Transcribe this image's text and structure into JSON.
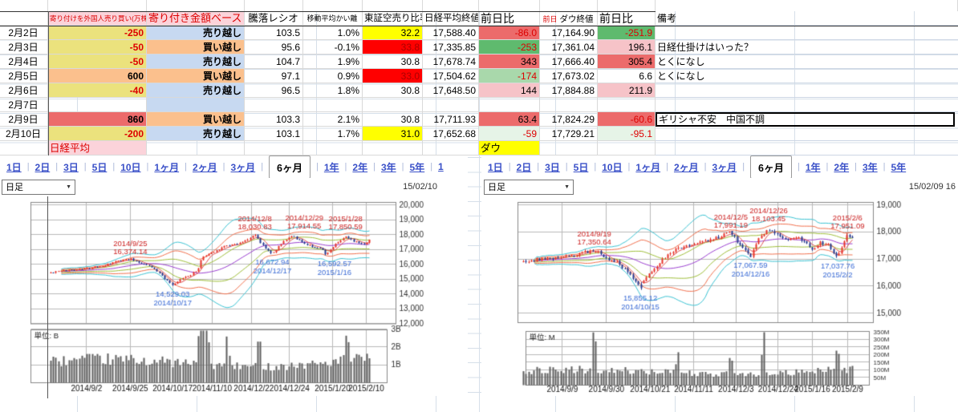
{
  "colors": {
    "accent_red": "#dd0000",
    "dark_red": "#aa0000",
    "tab_blue": "#3a50c8",
    "header_pink": "#fbd3da",
    "yellow": "#ebe27d",
    "orange": "#fbc08d",
    "blue": "#c7d9f1",
    "red_cell": "#ec6b6b",
    "lt_pink": "#f6c3c8",
    "green": "#5fba6e",
    "lt_green": "#a9d8ab",
    "vlt_green": "#e6f4e7",
    "hl_yellow": "#ffff00",
    "hl_red": "#ff0000",
    "candle_up": "#e8332a",
    "candle_down": "#24388f",
    "band_cyan": "#3cc4d4",
    "band_orange": "#f2714e",
    "band_green": "#9fbf3a",
    "ma_purple": "#9b3fd1",
    "ma_red": "#e05555",
    "vol_bar": "#5f5f5f",
    "ann_red": "#cc2222",
    "ann_blue": "#3a6bd6"
  },
  "table": {
    "headers": {
      "date": "",
      "foreign": "寄り付けを外国人売り買い(万株)",
      "basis": "寄り付き金額ベース",
      "ratio": "騰落レシオ",
      "ma_dev": "移動平均かい離",
      "short_ratio": "東証空売り比率",
      "nikkei_close": "日経平均終値",
      "nikkei_chg": "前日比",
      "dow_prev": "前日",
      "dow_close": "ダウ終値",
      "dow_chg": "前日比",
      "note": "備考"
    },
    "rows": [
      {
        "date": {
          "v": "2月2日"
        },
        "foreign": {
          "v": "-250",
          "bg": "yellow",
          "fg": "red"
        },
        "basis": {
          "v": "売り越し",
          "bg": "blue"
        },
        "ratio": {
          "v": "103.5"
        },
        "ma_dev": {
          "v": "1.0%"
        },
        "short_ratio": {
          "v": "32.2",
          "bg": "hl_yellow"
        },
        "nikkei_close": {
          "v": "17,588.40"
        },
        "nikkei_chg": {
          "v": "-86.0",
          "bg": "red_cell",
          "fg": "red"
        },
        "dow_close": {
          "v": "17,164.90"
        },
        "dow_chg": {
          "v": "-251.9",
          "bg": "green",
          "fg": "red"
        },
        "note": {
          "v": ""
        }
      },
      {
        "date": {
          "v": "2月3日"
        },
        "foreign": {
          "v": "-50",
          "bg": "yellow",
          "fg": "red"
        },
        "basis": {
          "v": "買い越し",
          "bg": "orange"
        },
        "ratio": {
          "v": "95.6"
        },
        "ma_dev": {
          "v": "-0.1%"
        },
        "short_ratio": {
          "v": "33.8",
          "bg": "hl_red",
          "fg": "dark_red"
        },
        "nikkei_close": {
          "v": "17,335.85"
        },
        "nikkei_chg": {
          "v": "-253",
          "bg": "green",
          "fg": "red"
        },
        "dow_close": {
          "v": "17,361.04"
        },
        "dow_chg": {
          "v": "196.1",
          "bg": "lt_pink"
        },
        "note": {
          "v": "日経仕掛けはいった？"
        }
      },
      {
        "date": {
          "v": "2月4日"
        },
        "foreign": {
          "v": "-50",
          "bg": "yellow",
          "fg": "red"
        },
        "basis": {
          "v": "売り越し",
          "bg": "blue"
        },
        "ratio": {
          "v": "104.7"
        },
        "ma_dev": {
          "v": "1.9%"
        },
        "short_ratio": {
          "v": "30.8"
        },
        "nikkei_close": {
          "v": "17,678.74"
        },
        "nikkei_chg": {
          "v": "343",
          "bg": "red_cell"
        },
        "dow_close": {
          "v": "17,666.40"
        },
        "dow_chg": {
          "v": "305.4",
          "bg": "red_cell"
        },
        "note": {
          "v": "とくになし"
        }
      },
      {
        "date": {
          "v": "2月5日"
        },
        "foreign": {
          "v": "600",
          "bg": "orange"
        },
        "basis": {
          "v": "買い越し",
          "bg": "orange"
        },
        "ratio": {
          "v": "97.1"
        },
        "ma_dev": {
          "v": "0.9%"
        },
        "short_ratio": {
          "v": "33.0",
          "bg": "hl_red",
          "fg": "dark_red"
        },
        "nikkei_close": {
          "v": "17,504.62"
        },
        "nikkei_chg": {
          "v": "-174",
          "bg": "lt_green",
          "fg": "red"
        },
        "dow_close": {
          "v": "17,673.02"
        },
        "dow_chg": {
          "v": "6.6"
        },
        "note": {
          "v": "とくになし"
        }
      },
      {
        "date": {
          "v": "2月6日"
        },
        "foreign": {
          "v": "-40",
          "bg": "yellow",
          "fg": "red"
        },
        "basis": {
          "v": "売り越し",
          "bg": "blue"
        },
        "ratio": {
          "v": "96.5"
        },
        "ma_dev": {
          "v": "1.8%"
        },
        "short_ratio": {
          "v": "30.8"
        },
        "nikkei_close": {
          "v": "17,648.50"
        },
        "nikkei_chg": {
          "v": "144",
          "bg": "lt_pink"
        },
        "dow_close": {
          "v": "17,884.88"
        },
        "dow_chg": {
          "v": "211.9",
          "bg": "lt_pink"
        },
        "note": {
          "v": ""
        }
      },
      {
        "date": {
          "v": "2月7日"
        },
        "foreign": {
          "v": ""
        },
        "basis": {
          "v": "",
          "bg": "blue"
        },
        "ratio": {
          "v": ""
        },
        "ma_dev": {
          "v": ""
        },
        "short_ratio": {
          "v": ""
        },
        "nikkei_close": {
          "v": ""
        },
        "nikkei_chg": {
          "v": ""
        },
        "dow_close": {
          "v": ""
        },
        "dow_chg": {
          "v": ""
        },
        "note": {
          "v": ""
        }
      },
      {
        "date": {
          "v": "2月9日"
        },
        "foreign": {
          "v": "860",
          "bg": "red_cell"
        },
        "basis": {
          "v": "買い越し",
          "bg": "orange"
        },
        "ratio": {
          "v": "103.3"
        },
        "ma_dev": {
          "v": "2.1%"
        },
        "short_ratio": {
          "v": "30.8"
        },
        "nikkei_close": {
          "v": "17,711.93"
        },
        "nikkei_chg": {
          "v": "63.4",
          "bg": "red_cell"
        },
        "dow_close": {
          "v": "17,824.29"
        },
        "dow_chg": {
          "v": "-60.6",
          "bg": "red_cell",
          "fg": "red"
        },
        "note": {
          "v": "ギリシャ不安　中国不調",
          "sel": true
        }
      },
      {
        "date": {
          "v": "2月10日"
        },
        "foreign": {
          "v": "-200",
          "bg": "yellow",
          "fg": "red"
        },
        "basis": {
          "v": "売り越し",
          "bg": "blue"
        },
        "ratio": {
          "v": "103.1"
        },
        "ma_dev": {
          "v": "1.7%"
        },
        "short_ratio": {
          "v": "31.0",
          "bg": "hl_yellow"
        },
        "nikkei_close": {
          "v": "17,652.68"
        },
        "nikkei_chg": {
          "v": "-59",
          "bg": "vlt_green",
          "fg": "red"
        },
        "dow_close": {
          "v": "17,729.21"
        },
        "dow_chg": {
          "v": "-95.1",
          "bg": "vlt_green",
          "fg": "red"
        },
        "note": {
          "v": ""
        }
      }
    ],
    "footer": {
      "nikkei_label": "日経平均",
      "dow_label": "ダウ"
    }
  },
  "left_panel": {
    "tabs": [
      "1日",
      "2日",
      "3日",
      "5日",
      "10日",
      "1ヶ月",
      "2ヶ月",
      "3ヶ月",
      "6ヶ月",
      "1年",
      "2年",
      "3年",
      "5年",
      "1"
    ],
    "selected_tab": "6ヶ月",
    "dropdown_value": "日足",
    "as_of": "15/02/10"
  },
  "right_panel": {
    "tabs": [
      "1日",
      "2日",
      "3日",
      "5日",
      "10日",
      "1ヶ月",
      "2ヶ月",
      "3ヶ月",
      "6ヶ月",
      "1年",
      "2年",
      "3年",
      "5年"
    ],
    "selected_tab": "6ヶ月",
    "dropdown_value": "日足",
    "as_of": "15/02/09 16"
  },
  "chart_data": [
    {
      "id": "nikkei",
      "type": "candlestick",
      "interval_label": "日足",
      "range_label": "6ヶ月",
      "as_of": "15/02/10",
      "ylim": [
        12000,
        20000
      ],
      "yticks": [
        {
          "v": 20000,
          "label": "20,000"
        },
        {
          "v": 19000,
          "label": "19,000"
        },
        {
          "v": 18000,
          "label": "18,000"
        },
        {
          "v": 17000,
          "label": "17,000"
        },
        {
          "v": 16000,
          "label": "16,000"
        },
        {
          "v": 15000,
          "label": "15,000"
        },
        {
          "v": 14000,
          "label": "14,000"
        },
        {
          "v": 13000,
          "label": "13,000"
        },
        {
          "v": 12000,
          "label": "12,000"
        }
      ],
      "x_labels": [
        {
          "t": 0.112,
          "label": "2014/9/2"
        },
        {
          "t": 0.249,
          "label": "2014/9/25"
        },
        {
          "t": 0.382,
          "label": "2014/10/17"
        },
        {
          "t": 0.506,
          "label": "2014/11/10"
        },
        {
          "t": 0.63,
          "label": "2014/12/2"
        },
        {
          "t": 0.749,
          "label": "2014/12/24"
        },
        {
          "t": 0.884,
          "label": "2015/1/20"
        },
        {
          "t": 0.99,
          "label": "2015/2/10"
        }
      ],
      "anchors": [
        [
          0,
          15420
        ],
        [
          0.05,
          15600
        ],
        [
          0.112,
          15680
        ],
        [
          0.17,
          15900
        ],
        [
          0.21,
          16200
        ],
        [
          0.249,
          16374
        ],
        [
          0.28,
          16100
        ],
        [
          0.315,
          15850
        ],
        [
          0.34,
          15400
        ],
        [
          0.362,
          14950
        ],
        [
          0.382,
          14532
        ],
        [
          0.41,
          15000
        ],
        [
          0.44,
          15300
        ],
        [
          0.462,
          15650
        ],
        [
          0.475,
          16450
        ],
        [
          0.506,
          16800
        ],
        [
          0.55,
          17250
        ],
        [
          0.59,
          17400
        ],
        [
          0.615,
          17600
        ],
        [
          0.64,
          18030
        ],
        [
          0.66,
          17400
        ],
        [
          0.695,
          16675
        ],
        [
          0.72,
          17300
        ],
        [
          0.745,
          17800
        ],
        [
          0.76,
          17914
        ],
        [
          0.79,
          17450
        ],
        [
          0.82,
          17200
        ],
        [
          0.85,
          17000
        ],
        [
          0.865,
          16600
        ],
        [
          0.89,
          17300
        ],
        [
          0.905,
          17550
        ],
        [
          0.925,
          17850
        ],
        [
          0.945,
          17600
        ],
        [
          0.965,
          17500
        ],
        [
          0.985,
          17350
        ],
        [
          1,
          17652
        ]
      ],
      "annotations": [
        {
          "type": "peak",
          "t": 0.249,
          "date": "2014/9/25",
          "value": "16,374.14",
          "price": 16374.14
        },
        {
          "type": "peak",
          "t": 0.64,
          "date": "2014/12/8",
          "value": "18,030.83",
          "price": 18030.83
        },
        {
          "type": "peak",
          "t": 0.76,
          "date": "2014/12/29",
          "value": "17,914.55",
          "price": 17914.55,
          "dx": 14,
          "dy": -3
        },
        {
          "type": "peak",
          "t": 0.925,
          "date": "2015/1/28",
          "value": "17,850.59",
          "price": 17850.59,
          "dy": -3
        },
        {
          "type": "trough",
          "t": 0.382,
          "date": "2014/10/17",
          "value": "14,529.03",
          "price": 14529.03
        },
        {
          "type": "trough",
          "t": 0.695,
          "date": "2014/12/17",
          "value": "16,672.94",
          "price": 16672.94
        },
        {
          "type": "trough",
          "t": 0.865,
          "date": "2015/1/16",
          "value": "16,592.57",
          "price": 16592.57,
          "dx": 10
        }
      ],
      "volume": {
        "unit_label": "単位: B",
        "unit": "B",
        "baseline": 1.05,
        "yticks": [
          {
            "v": 3,
            "label": "3B"
          },
          {
            "v": 2,
            "label": "2B"
          },
          {
            "v": 1,
            "label": "1B"
          }
        ],
        "spikes": [
          {
            "t": 0.468,
            "v": 3.0
          },
          {
            "t": 0.48,
            "v": 2.5
          },
          {
            "t": 0.492,
            "v": 2.2
          },
          {
            "t": 0.555,
            "v": 1.7
          },
          {
            "t": 0.655,
            "v": 2.3
          },
          {
            "t": 0.93,
            "v": 1.9
          }
        ]
      }
    },
    {
      "id": "dow",
      "type": "candlestick",
      "interval_label": "日足",
      "range_label": "6ヶ月",
      "as_of": "15/02/09 16",
      "ylim": [
        15000,
        19000
      ],
      "yticks": [
        {
          "v": 19000,
          "label": "19,000"
        },
        {
          "v": 18000,
          "label": "18,000"
        },
        {
          "v": 17000,
          "label": "17,000"
        },
        {
          "v": 16000,
          "label": "16,000"
        },
        {
          "v": 15000,
          "label": "15,000"
        }
      ],
      "x_labels": [
        {
          "t": 0.118,
          "label": "2014/9/9"
        },
        {
          "t": 0.252,
          "label": "2014/9/30"
        },
        {
          "t": 0.385,
          "label": "2014/10/21"
        },
        {
          "t": 0.517,
          "label": "2014/11/11"
        },
        {
          "t": 0.646,
          "label": "2014/12/3"
        },
        {
          "t": 0.774,
          "label": "2014/12/24"
        },
        {
          "t": 0.878,
          "label": "2015/1/16"
        },
        {
          "t": 0.985,
          "label": "2015/2/9"
        }
      ],
      "anchors": [
        [
          0,
          16920
        ],
        [
          0.06,
          17000
        ],
        [
          0.118,
          17080
        ],
        [
          0.16,
          17150
        ],
        [
          0.215,
          17350
        ],
        [
          0.25,
          17050
        ],
        [
          0.29,
          16850
        ],
        [
          0.32,
          16450
        ],
        [
          0.345,
          16100
        ],
        [
          0.355,
          16050
        ],
        [
          0.385,
          16450
        ],
        [
          0.42,
          16950
        ],
        [
          0.46,
          17350
        ],
        [
          0.517,
          17550
        ],
        [
          0.56,
          17650
        ],
        [
          0.6,
          17830
        ],
        [
          0.63,
          17991
        ],
        [
          0.655,
          17550
        ],
        [
          0.69,
          17068
        ],
        [
          0.715,
          17750
        ],
        [
          0.745,
          18103
        ],
        [
          0.77,
          17950
        ],
        [
          0.8,
          17700
        ],
        [
          0.83,
          17850
        ],
        [
          0.86,
          17550
        ],
        [
          0.878,
          17300
        ],
        [
          0.9,
          17650
        ],
        [
          0.925,
          17500
        ],
        [
          0.955,
          17040
        ],
        [
          0.985,
          17951
        ],
        [
          1,
          17729
        ]
      ],
      "annotations": [
        {
          "type": "peak",
          "t": 0.215,
          "date": "2014/9/19",
          "value": "17,350.64",
          "price": 17350.64
        },
        {
          "type": "peak",
          "t": 0.63,
          "date": "2014/12/5",
          "value": "17,991.19",
          "price": 17991.19
        },
        {
          "type": "peak",
          "t": 0.745,
          "date": "2014/12/26",
          "value": "18,103.45",
          "price": 18103.45,
          "dy": -4
        },
        {
          "type": "peak",
          "t": 0.985,
          "date": "2015/2/6",
          "value": "17,951.09",
          "price": 17951.09
        },
        {
          "type": "trough",
          "t": 0.355,
          "date": "2014/10/15",
          "value": "15,855.12",
          "price": 15855.12
        },
        {
          "type": "trough",
          "t": 0.69,
          "date": "2014/12/16",
          "value": "17,067.59",
          "price": 17067.59
        },
        {
          "type": "trough",
          "t": 0.955,
          "date": "2015/2/2",
          "value": "17,037.76",
          "price": 17037.76
        }
      ],
      "volume": {
        "unit_label": "単位: M",
        "unit": "M",
        "baseline": 82,
        "yticks": [
          {
            "v": 350,
            "label": "350M"
          },
          {
            "v": 300,
            "label": "300M"
          },
          {
            "v": 250,
            "label": "250M"
          },
          {
            "v": 200,
            "label": "200M"
          },
          {
            "v": 150,
            "label": "150M"
          },
          {
            "v": 100,
            "label": "100M"
          },
          {
            "v": 50,
            "label": "50M"
          }
        ],
        "spikes": [
          {
            "t": 0.215,
            "v": 340
          },
          {
            "t": 0.47,
            "v": 150
          },
          {
            "t": 0.63,
            "v": 145
          },
          {
            "t": 0.73,
            "v": 350
          },
          {
            "t": 0.955,
            "v": 185
          }
        ]
      }
    }
  ]
}
